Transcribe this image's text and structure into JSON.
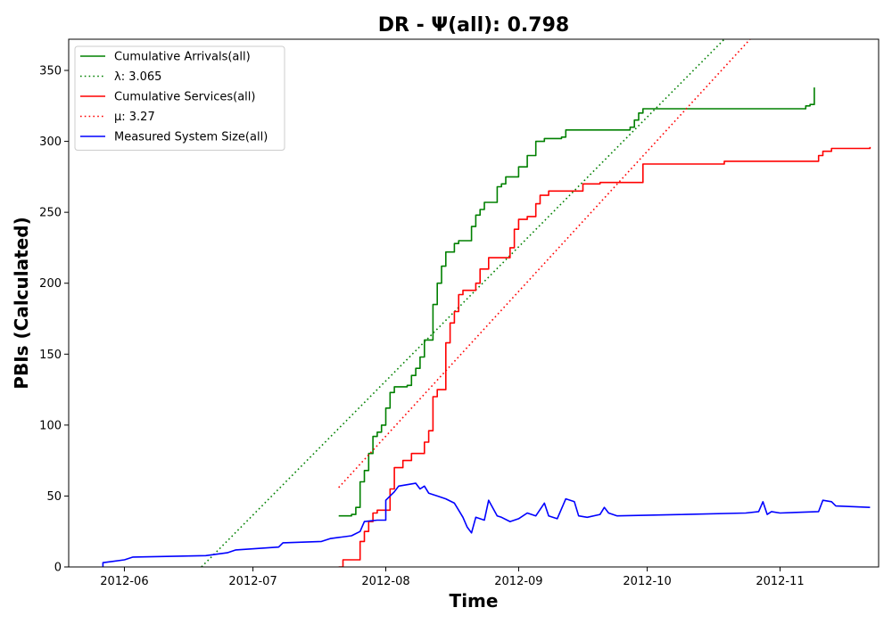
{
  "chart_data": {
    "type": "line",
    "title": "DR -  Ψ(all): 0.798",
    "xlabel": "Time",
    "ylabel": "PBIs (Calculated)",
    "xlim": [
      "2012-05-19",
      "2012-11-24"
    ],
    "ylim": [
      0,
      372
    ],
    "x_ticks": [
      "2012-06",
      "2012-07",
      "2012-08",
      "2012-09",
      "2012-10",
      "2012-11"
    ],
    "y_ticks": [
      0,
      50,
      100,
      150,
      200,
      250,
      300,
      350
    ],
    "grid": false,
    "legend_position": "top-left",
    "series": [
      {
        "name": "Cumulative Arrivals(all)",
        "color": "#008000",
        "style": "solid",
        "step": true,
        "points": [
          [
            "2012-07-21",
            36
          ],
          [
            "2012-07-24",
            37
          ],
          [
            "2012-07-25",
            42
          ],
          [
            "2012-07-26",
            60
          ],
          [
            "2012-07-27",
            68
          ],
          [
            "2012-07-28",
            80
          ],
          [
            "2012-07-29",
            92
          ],
          [
            "2012-07-30",
            95
          ],
          [
            "2012-07-31",
            100
          ],
          [
            "2012-08-01",
            112
          ],
          [
            "2012-08-02",
            123
          ],
          [
            "2012-08-03",
            127
          ],
          [
            "2012-08-06",
            128
          ],
          [
            "2012-08-07",
            135
          ],
          [
            "2012-08-08",
            140
          ],
          [
            "2012-08-09",
            148
          ],
          [
            "2012-08-10",
            160
          ],
          [
            "2012-08-12",
            185
          ],
          [
            "2012-08-13",
            200
          ],
          [
            "2012-08-14",
            212
          ],
          [
            "2012-08-15",
            222
          ],
          [
            "2012-08-17",
            228
          ],
          [
            "2012-08-18",
            230
          ],
          [
            "2012-08-21",
            240
          ],
          [
            "2012-08-22",
            248
          ],
          [
            "2012-08-23",
            252
          ],
          [
            "2012-08-24",
            257
          ],
          [
            "2012-08-27",
            268
          ],
          [
            "2012-08-28",
            270
          ],
          [
            "2012-08-29",
            275
          ],
          [
            "2012-09-01",
            282
          ],
          [
            "2012-09-03",
            290
          ],
          [
            "2012-09-05",
            300
          ],
          [
            "2012-09-07",
            302
          ],
          [
            "2012-09-11",
            303
          ],
          [
            "2012-09-12",
            308
          ],
          [
            "2012-09-27",
            310
          ],
          [
            "2012-09-28",
            315
          ],
          [
            "2012-09-29",
            320
          ],
          [
            "2012-09-30",
            323
          ],
          [
            "2012-11-07",
            325
          ],
          [
            "2012-11-08",
            326
          ],
          [
            "2012-11-09",
            338
          ]
        ]
      },
      {
        "name": "λ: 3.065",
        "color": "#008000",
        "style": "dotted",
        "step": false,
        "points": [
          [
            "2012-06-19",
            0
          ],
          [
            "2012-10-19",
            372
          ]
        ]
      },
      {
        "name": "Cumulative Services(all)",
        "color": "#ff0000",
        "style": "solid",
        "step": true,
        "points": [
          [
            "2012-07-21",
            0
          ],
          [
            "2012-07-22",
            5
          ],
          [
            "2012-07-26",
            18
          ],
          [
            "2012-07-27",
            25
          ],
          [
            "2012-07-28",
            32
          ],
          [
            "2012-07-29",
            38
          ],
          [
            "2012-07-30",
            40
          ],
          [
            "2012-08-02",
            55
          ],
          [
            "2012-08-03",
            70
          ],
          [
            "2012-08-05",
            75
          ],
          [
            "2012-08-07",
            80
          ],
          [
            "2012-08-10",
            88
          ],
          [
            "2012-08-11",
            96
          ],
          [
            "2012-08-12",
            120
          ],
          [
            "2012-08-13",
            125
          ],
          [
            "2012-08-15",
            158
          ],
          [
            "2012-08-16",
            172
          ],
          [
            "2012-08-17",
            180
          ],
          [
            "2012-08-18",
            192
          ],
          [
            "2012-08-19",
            195
          ],
          [
            "2012-08-22",
            200
          ],
          [
            "2012-08-23",
            210
          ],
          [
            "2012-08-25",
            218
          ],
          [
            "2012-08-30",
            225
          ],
          [
            "2012-08-31",
            238
          ],
          [
            "2012-09-01",
            245
          ],
          [
            "2012-09-03",
            247
          ],
          [
            "2012-09-05",
            256
          ],
          [
            "2012-09-06",
            262
          ],
          [
            "2012-09-08",
            265
          ],
          [
            "2012-09-16",
            270
          ],
          [
            "2012-09-20",
            271
          ],
          [
            "2012-09-30",
            284
          ],
          [
            "2012-10-19",
            286
          ],
          [
            "2012-11-10",
            290
          ],
          [
            "2012-11-11",
            293
          ],
          [
            "2012-11-13",
            295
          ],
          [
            "2012-11-22",
            296
          ]
        ]
      },
      {
        "name": "μ: 3.27",
        "color": "#ff0000",
        "style": "dotted",
        "step": false,
        "points": [
          [
            "2012-07-21",
            56
          ],
          [
            "2012-10-25",
            372
          ]
        ]
      },
      {
        "name": "Measured System Size(all)",
        "color": "#0000ff",
        "style": "solid",
        "step": false,
        "points": [
          [
            "2012-05-27",
            0
          ],
          [
            "2012-05-27",
            3
          ],
          [
            "2012-06-01",
            5
          ],
          [
            "2012-06-03",
            7
          ],
          [
            "2012-06-20",
            8
          ],
          [
            "2012-06-25",
            10
          ],
          [
            "2012-06-27",
            12
          ],
          [
            "2012-07-07",
            14
          ],
          [
            "2012-07-08",
            17
          ],
          [
            "2012-07-17",
            18
          ],
          [
            "2012-07-19",
            20
          ],
          [
            "2012-07-24",
            22
          ],
          [
            "2012-07-26",
            25
          ],
          [
            "2012-07-27",
            32
          ],
          [
            "2012-07-30",
            33
          ],
          [
            "2012-08-01",
            33
          ],
          [
            "2012-08-01",
            47
          ],
          [
            "2012-08-03",
            53
          ],
          [
            "2012-08-04",
            57
          ],
          [
            "2012-08-06",
            58
          ],
          [
            "2012-08-08",
            59
          ],
          [
            "2012-08-09",
            55
          ],
          [
            "2012-08-10",
            57
          ],
          [
            "2012-08-11",
            52
          ],
          [
            "2012-08-13",
            50
          ],
          [
            "2012-08-15",
            48
          ],
          [
            "2012-08-17",
            45
          ],
          [
            "2012-08-18",
            40
          ],
          [
            "2012-08-19",
            35
          ],
          [
            "2012-08-20",
            28
          ],
          [
            "2012-08-21",
            24
          ],
          [
            "2012-08-22",
            35
          ],
          [
            "2012-08-24",
            33
          ],
          [
            "2012-08-25",
            47
          ],
          [
            "2012-08-27",
            36
          ],
          [
            "2012-08-28",
            35
          ],
          [
            "2012-08-30",
            32
          ],
          [
            "2012-09-01",
            34
          ],
          [
            "2012-09-03",
            38
          ],
          [
            "2012-09-05",
            36
          ],
          [
            "2012-09-07",
            45
          ],
          [
            "2012-09-08",
            36
          ],
          [
            "2012-09-10",
            34
          ],
          [
            "2012-09-12",
            48
          ],
          [
            "2012-09-14",
            46
          ],
          [
            "2012-09-15",
            36
          ],
          [
            "2012-09-17",
            35
          ],
          [
            "2012-09-20",
            37
          ],
          [
            "2012-09-21",
            42
          ],
          [
            "2012-09-22",
            38
          ],
          [
            "2012-09-24",
            36
          ],
          [
            "2012-10-10",
            37
          ],
          [
            "2012-10-24",
            38
          ],
          [
            "2012-10-27",
            39
          ],
          [
            "2012-10-28",
            46
          ],
          [
            "2012-10-29",
            37
          ],
          [
            "2012-10-30",
            39
          ],
          [
            "2012-11-01",
            38
          ],
          [
            "2012-11-10",
            39
          ],
          [
            "2012-11-11",
            47
          ],
          [
            "2012-11-13",
            46
          ],
          [
            "2012-11-14",
            43
          ],
          [
            "2012-11-22",
            42
          ]
        ]
      }
    ]
  }
}
